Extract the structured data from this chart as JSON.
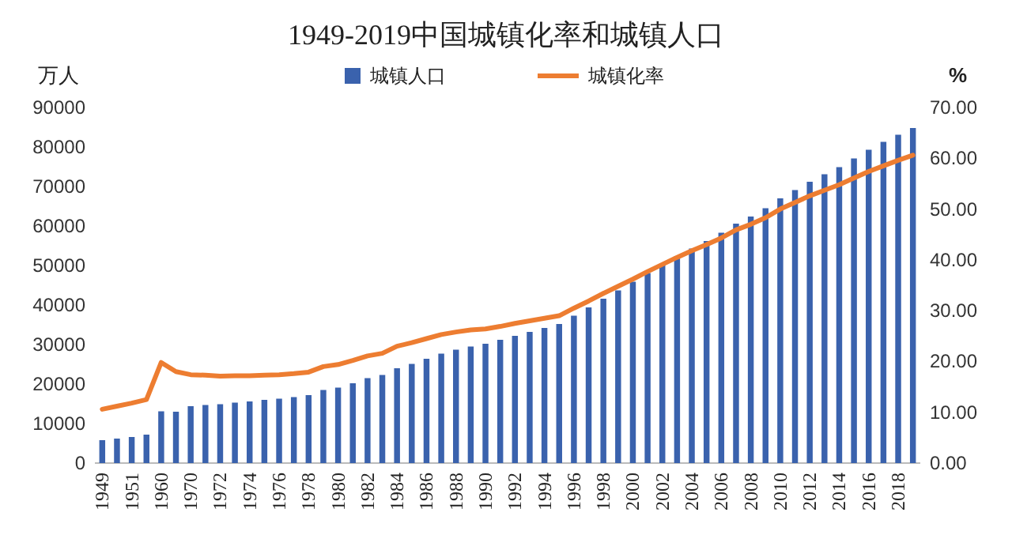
{
  "chart_data": {
    "type": "bar",
    "title": "1949-2019中国城镇化率和城镇人口",
    "ylabel": "万人",
    "y2label": "%",
    "categories": [
      "1949",
      null,
      "1951",
      null,
      "1960",
      null,
      "1970",
      null,
      "1972",
      null,
      "1974",
      null,
      "1976",
      null,
      "1978",
      null,
      "1980",
      null,
      "1982",
      null,
      "1984",
      null,
      "1986",
      null,
      "1988",
      null,
      "1990",
      null,
      "1992",
      null,
      "1994",
      null,
      "1996",
      null,
      "1998",
      null,
      "2000",
      null,
      "2002",
      null,
      "2004",
      null,
      "2006",
      null,
      "2008",
      null,
      "2010",
      null,
      "2012",
      null,
      "2014",
      null,
      "2016",
      null,
      "2018",
      null
    ],
    "series": [
      {
        "name": "城镇人口",
        "color": "#3a62ad",
        "values": [
          5800,
          6200,
          6600,
          7200,
          13100,
          13000,
          14400,
          14700,
          14900,
          15300,
          15600,
          16000,
          16300,
          16700,
          17200,
          18500,
          19100,
          20200,
          21500,
          22300,
          24000,
          25100,
          26400,
          27700,
          28700,
          29500,
          30200,
          31200,
          32200,
          33200,
          34200,
          35200,
          37300,
          39400,
          41600,
          43700,
          45900,
          48100,
          50200,
          52400,
          54300,
          56200,
          58300,
          60600,
          62400,
          64500,
          67000,
          69100,
          71200,
          73100,
          74900,
          77100,
          79300,
          81300,
          83100,
          84800
        ]
      },
      {
        "name": "城镇化率",
        "type": "line",
        "axis": "y2",
        "color": "#ed7d31",
        "values": [
          10.6,
          11.2,
          11.8,
          12.5,
          19.8,
          18.0,
          17.4,
          17.3,
          17.1,
          17.2,
          17.2,
          17.3,
          17.4,
          17.6,
          17.9,
          19.0,
          19.4,
          20.2,
          21.1,
          21.6,
          23.0,
          23.7,
          24.5,
          25.3,
          25.8,
          26.2,
          26.4,
          26.9,
          27.5,
          28.0,
          28.5,
          29.0,
          30.5,
          31.9,
          33.4,
          34.8,
          36.2,
          37.7,
          39.1,
          40.5,
          41.8,
          43.0,
          44.3,
          45.9,
          47.0,
          48.3,
          50.0,
          51.3,
          52.6,
          53.7,
          54.8,
          56.1,
          57.4,
          58.5,
          59.6,
          60.6
        ]
      }
    ],
    "ylim": [
      0,
      90000
    ],
    "yticks": [
      0,
      10000,
      20000,
      30000,
      40000,
      50000,
      60000,
      70000,
      80000,
      90000
    ],
    "y2lim": [
      0,
      70
    ],
    "y2ticks": [
      {
        "value": 0,
        "label": "0.00"
      },
      {
        "value": 10,
        "label": "10.00"
      },
      {
        "value": 20,
        "label": "20.00"
      },
      {
        "value": 30,
        "label": "30.00"
      },
      {
        "value": 40,
        "label": "40.00"
      },
      {
        "value": 50,
        "label": "50.00"
      },
      {
        "value": 60,
        "label": "60.00"
      },
      {
        "value": 70,
        "label": "70.00"
      }
    ],
    "legend": "top",
    "grid": false
  }
}
